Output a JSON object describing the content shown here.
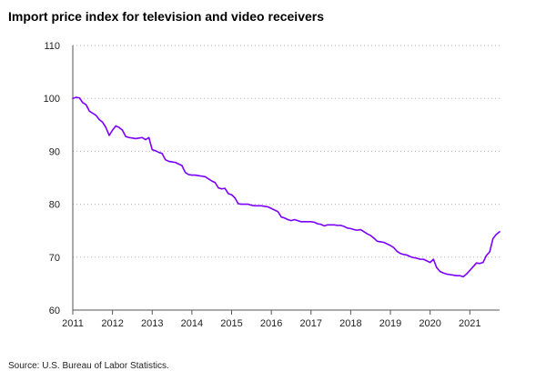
{
  "chart": {
    "title": "Import price index for television and video receivers",
    "source": "Source: U.S. Bureau of Labor Statistics."
  },
  "colors": {
    "series_line": "#7b00ff",
    "gridline": "#b3b3b3",
    "axis": "#555555"
  },
  "chart_data": {
    "type": "line",
    "title": "Import price index for television and video receivers",
    "xlabel": "",
    "ylabel": "",
    "x_ticks": [
      "2011",
      "2012",
      "2013",
      "2014",
      "2015",
      "2016",
      "2017",
      "2018",
      "2019",
      "2020",
      "2021"
    ],
    "y_ticks": [
      60,
      70,
      80,
      90,
      100,
      110
    ],
    "xlim": [
      "2011-01",
      "2021-10"
    ],
    "ylim": [
      60,
      110
    ],
    "grid": "horizontal-dotted",
    "legend": "none",
    "series": [
      {
        "color": "#7b00ff",
        "x": [
          "2011-01",
          "2011-02",
          "2011-03",
          "2011-04",
          "2011-05",
          "2011-06",
          "2011-07",
          "2011-08",
          "2011-09",
          "2011-10",
          "2011-11",
          "2011-12",
          "2012-01",
          "2012-02",
          "2012-03",
          "2012-04",
          "2012-05",
          "2012-06",
          "2012-07",
          "2012-08",
          "2012-09",
          "2012-10",
          "2012-11",
          "2012-12",
          "2013-01",
          "2013-02",
          "2013-03",
          "2013-04",
          "2013-05",
          "2013-06",
          "2013-07",
          "2013-08",
          "2013-09",
          "2013-10",
          "2013-11",
          "2013-12",
          "2014-01",
          "2014-02",
          "2014-03",
          "2014-04",
          "2014-05",
          "2014-06",
          "2014-07",
          "2014-08",
          "2014-09",
          "2014-10",
          "2014-11",
          "2014-12",
          "2015-01",
          "2015-02",
          "2015-03",
          "2015-04",
          "2015-05",
          "2015-06",
          "2015-07",
          "2015-08",
          "2015-09",
          "2015-10",
          "2015-11",
          "2015-12",
          "2016-01",
          "2016-02",
          "2016-03",
          "2016-04",
          "2016-05",
          "2016-06",
          "2016-07",
          "2016-08",
          "2016-09",
          "2016-10",
          "2016-11",
          "2016-12",
          "2017-01",
          "2017-02",
          "2017-03",
          "2017-04",
          "2017-05",
          "2017-06",
          "2017-07",
          "2017-08",
          "2017-09",
          "2017-10",
          "2017-11",
          "2017-12",
          "2018-01",
          "2018-02",
          "2018-03",
          "2018-04",
          "2018-05",
          "2018-06",
          "2018-07",
          "2018-08",
          "2018-09",
          "2018-10",
          "2018-11",
          "2018-12",
          "2019-01",
          "2019-02",
          "2019-03",
          "2019-04",
          "2019-05",
          "2019-06",
          "2019-07",
          "2019-08",
          "2019-09",
          "2019-10",
          "2019-11",
          "2019-12",
          "2020-01",
          "2020-02",
          "2020-03",
          "2020-04",
          "2020-05",
          "2020-06",
          "2020-07",
          "2020-08",
          "2020-09",
          "2020-10",
          "2020-11",
          "2020-12",
          "2021-01",
          "2021-02",
          "2021-03",
          "2021-04",
          "2021-05",
          "2021-06",
          "2021-07",
          "2021-08",
          "2021-09",
          "2021-10"
        ],
        "values": [
          100.0,
          100.2,
          100.1,
          99.2,
          98.8,
          97.6,
          97.2,
          96.8,
          96.0,
          95.5,
          94.5,
          93.0,
          94.0,
          94.8,
          94.5,
          94.0,
          92.8,
          92.6,
          92.5,
          92.4,
          92.5,
          92.6,
          92.2,
          92.6,
          90.3,
          90.1,
          89.8,
          89.6,
          88.4,
          88.1,
          88.0,
          87.9,
          87.6,
          87.3,
          86.0,
          85.6,
          85.5,
          85.5,
          85.4,
          85.3,
          85.2,
          84.8,
          84.4,
          84.1,
          83.1,
          82.9,
          83.0,
          82.0,
          81.8,
          81.2,
          80.1,
          80.0,
          80.0,
          80.0,
          79.8,
          79.7,
          79.7,
          79.7,
          79.6,
          79.5,
          79.2,
          78.9,
          78.6,
          77.6,
          77.4,
          77.1,
          76.9,
          77.1,
          76.9,
          76.7,
          76.7,
          76.7,
          76.7,
          76.6,
          76.3,
          76.2,
          75.9,
          76.1,
          76.1,
          76.1,
          76.0,
          76.0,
          75.8,
          75.5,
          75.4,
          75.2,
          75.1,
          75.2,
          74.8,
          74.4,
          74.1,
          73.6,
          73.0,
          72.9,
          72.8,
          72.5,
          72.2,
          71.8,
          71.1,
          70.7,
          70.5,
          70.4,
          70.1,
          69.9,
          69.8,
          69.6,
          69.6,
          69.3,
          69.0,
          69.6,
          68.0,
          67.3,
          67.0,
          66.8,
          66.7,
          66.6,
          66.5,
          66.5,
          66.3,
          66.8,
          67.5,
          68.2,
          68.9,
          68.8,
          69.0,
          70.3,
          71.0,
          73.5,
          74.3,
          74.8
        ]
      }
    ]
  }
}
